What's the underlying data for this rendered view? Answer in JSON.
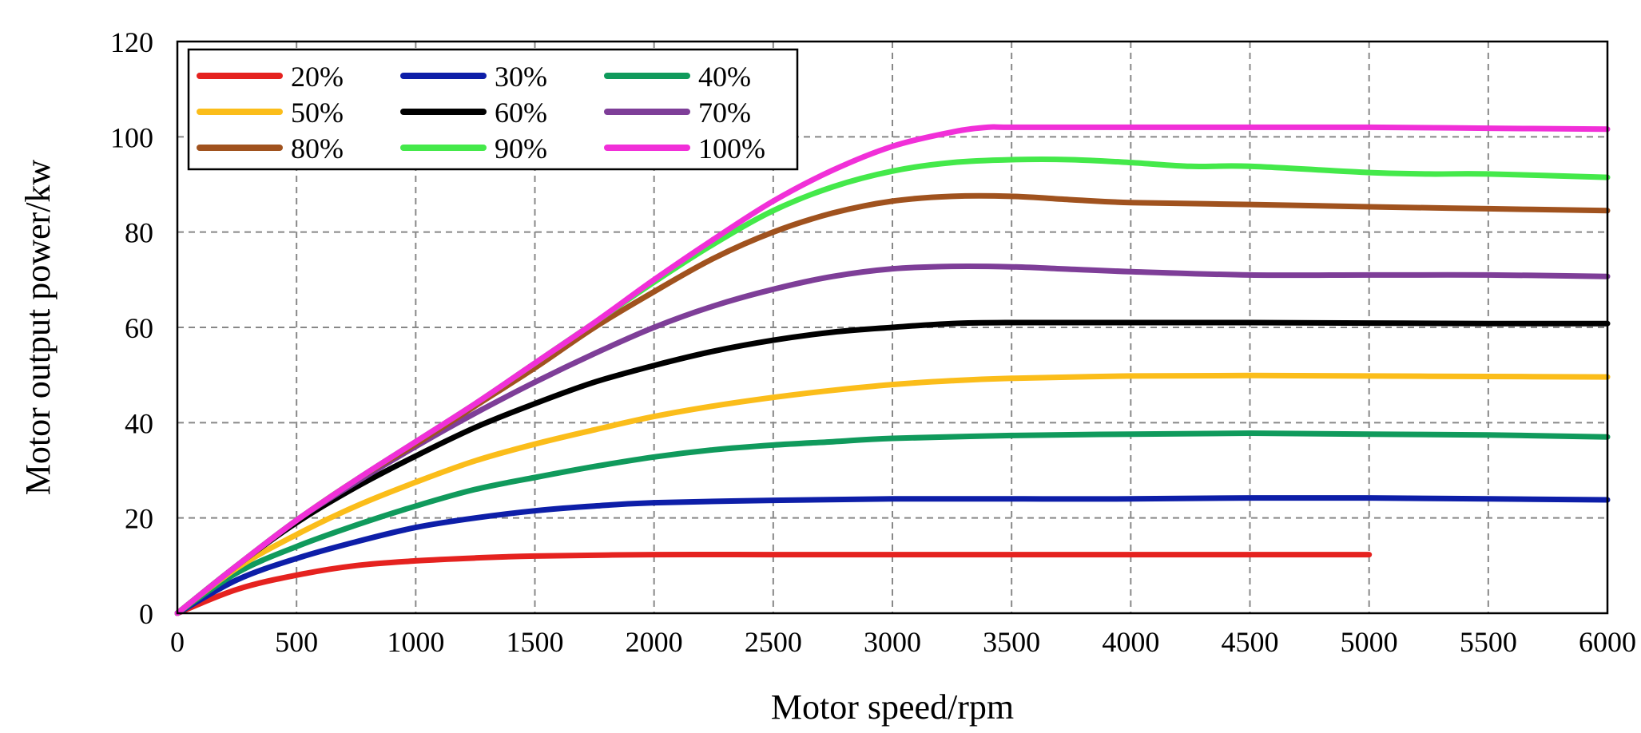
{
  "chart_data": {
    "type": "line",
    "title": "",
    "xlabel": "Motor speed/rpm",
    "ylabel": "Motor output power/kw",
    "xlim": [
      0,
      6000
    ],
    "ylim": [
      0,
      120
    ],
    "x_ticks": [
      "0",
      "500",
      "1000",
      "1500",
      "2000",
      "2500",
      "3000",
      "3500",
      "4000",
      "4500",
      "5000",
      "5500",
      "6000"
    ],
    "y_ticks": [
      "0",
      "20",
      "40",
      "60",
      "80",
      "100",
      "120"
    ],
    "grid": true,
    "legend_position": "top-left",
    "series": [
      {
        "name": "20%",
        "color": "#e5221f",
        "x": [
          0,
          250,
          500,
          750,
          1000,
          1250,
          1500,
          2000,
          2500,
          3000,
          3500,
          4000,
          4500,
          5000
        ],
        "y": [
          0,
          5,
          8,
          10,
          11,
          11.6,
          12,
          12.3,
          12.3,
          12.3,
          12.3,
          12.3,
          12.3,
          12.3
        ]
      },
      {
        "name": "30%",
        "color": "#0d1ea8",
        "x": [
          0,
          250,
          500,
          750,
          1000,
          1250,
          1500,
          1750,
          2000,
          2500,
          3000,
          3500,
          4000,
          4500,
          5000,
          5500,
          6000
        ],
        "y": [
          0,
          7,
          11.5,
          15,
          18,
          20,
          21.5,
          22.5,
          23.2,
          23.7,
          24,
          24,
          24,
          24.2,
          24.2,
          24,
          23.8
        ]
      },
      {
        "name": "40%",
        "color": "#109a5c",
        "x": [
          0,
          250,
          500,
          750,
          1000,
          1250,
          1500,
          1750,
          2000,
          2250,
          2500,
          2750,
          3000,
          3500,
          4000,
          4500,
          5000,
          5500,
          6000
        ],
        "y": [
          0,
          8.5,
          14,
          18.5,
          22.5,
          26,
          28.5,
          30.8,
          32.8,
          34.3,
          35.3,
          36,
          36.7,
          37.3,
          37.6,
          37.8,
          37.6,
          37.4,
          37
        ]
      },
      {
        "name": "50%",
        "color": "#fbbd1a",
        "x": [
          0,
          250,
          500,
          750,
          1000,
          1250,
          1500,
          1750,
          2000,
          2250,
          2500,
          2750,
          3000,
          3250,
          3500,
          4000,
          4500,
          5000,
          5500,
          6000
        ],
        "y": [
          0,
          9.5,
          16.5,
          22.5,
          27.5,
          32,
          35.5,
          38.5,
          41.3,
          43.5,
          45.3,
          46.8,
          48,
          48.8,
          49.3,
          49.8,
          49.9,
          49.8,
          49.7,
          49.6
        ]
      },
      {
        "name": "60%",
        "color": "#000000",
        "x": [
          0,
          250,
          500,
          750,
          1000,
          1250,
          1500,
          1750,
          2000,
          2250,
          2500,
          2750,
          3000,
          3250,
          3500,
          4000,
          4500,
          5000,
          5500,
          6000
        ],
        "y": [
          0,
          10,
          19,
          26.5,
          33,
          39,
          44,
          48.5,
          52,
          55,
          57.3,
          59,
          60,
          60.8,
          61,
          61,
          61,
          60.9,
          60.8,
          60.8
        ]
      },
      {
        "name": "70%",
        "color": "#7e3e98",
        "x": [
          0,
          250,
          500,
          750,
          1000,
          1250,
          1500,
          1750,
          2000,
          2250,
          2500,
          2750,
          3000,
          3250,
          3500,
          3750,
          4000,
          4500,
          5000,
          5500,
          6000
        ],
        "y": [
          0,
          10,
          19.5,
          27.5,
          35,
          42,
          48.5,
          54.5,
          60,
          64.5,
          68,
          70.7,
          72.3,
          72.8,
          72.7,
          72.2,
          71.7,
          71,
          71,
          71,
          70.7
        ]
      },
      {
        "name": "80%",
        "color": "#a0521e",
        "x": [
          0,
          250,
          500,
          750,
          1000,
          1250,
          1500,
          1750,
          2000,
          2250,
          2500,
          2750,
          3000,
          3250,
          3500,
          3750,
          4000,
          4500,
          5000,
          5500,
          6000
        ],
        "y": [
          0,
          10,
          19.5,
          28,
          35.5,
          43.5,
          51.5,
          60,
          67.5,
          74.5,
          80,
          84,
          86.5,
          87.5,
          87.5,
          86.8,
          86.2,
          85.8,
          85.3,
          84.9,
          84.5
        ]
      },
      {
        "name": "90%",
        "color": "#44e94a",
        "x": [
          0,
          250,
          500,
          750,
          1000,
          1250,
          1500,
          1750,
          2000,
          2250,
          2500,
          2750,
          3000,
          3250,
          3500,
          3750,
          4000,
          4250,
          4500,
          5000,
          5250,
          5500,
          6000
        ],
        "y": [
          0,
          10,
          19.5,
          28,
          36,
          44,
          52.5,
          61,
          69.5,
          77.5,
          84.5,
          89.5,
          92.8,
          94.6,
          95.2,
          95.2,
          94.6,
          93.8,
          93.8,
          92.5,
          92.2,
          92.2,
          91.5
        ]
      },
      {
        "name": "100%",
        "color": "#f12fd8",
        "x": [
          0,
          250,
          500,
          750,
          1000,
          1250,
          1500,
          1750,
          2000,
          2250,
          2500,
          2750,
          3000,
          3250,
          3400,
          3500,
          4000,
          4500,
          5000,
          5500,
          6000
        ],
        "y": [
          0,
          10,
          19.5,
          28,
          36,
          44,
          52.5,
          61,
          70,
          78.5,
          86.5,
          93,
          98,
          101,
          102,
          102,
          102,
          102,
          102,
          101.8,
          101.6
        ]
      }
    ]
  }
}
